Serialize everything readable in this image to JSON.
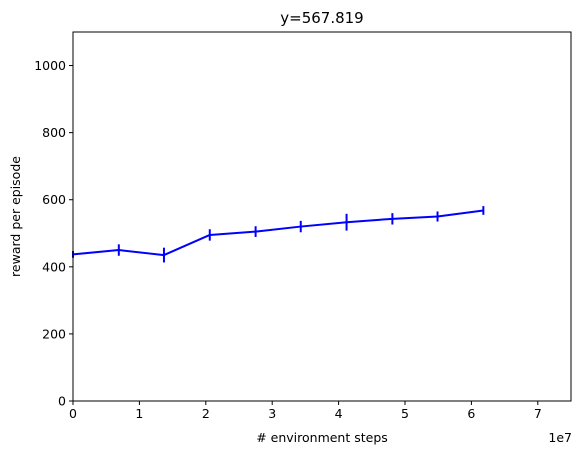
{
  "chart_data": {
    "type": "line",
    "title": "y=567.819",
    "xlabel": "# environment steps",
    "ylabel": "reward per episode",
    "x_offset_label": "1e7",
    "xlim": [
      0,
      7.5
    ],
    "ylim": [
      0,
      1100
    ],
    "x_ticks": [
      0,
      1,
      2,
      3,
      4,
      5,
      6,
      7
    ],
    "x_tick_labels": [
      "0",
      "1",
      "2",
      "3",
      "4",
      "5",
      "6",
      "7"
    ],
    "y_ticks": [
      0,
      200,
      400,
      600,
      800,
      1000
    ],
    "y_tick_labels": [
      "0",
      "200",
      "400",
      "600",
      "800",
      "1000"
    ],
    "grid": false,
    "series": [
      {
        "color": "#0000ff",
        "x": [
          0.0,
          0.69,
          1.37,
          2.06,
          2.75,
          3.43,
          4.12,
          4.81,
          5.49,
          6.18
        ],
        "y": [
          437,
          450,
          435,
          495,
          505,
          520,
          533,
          543,
          550,
          568
        ],
        "yerr": [
          10,
          17,
          22,
          17,
          16,
          17,
          25,
          17,
          15,
          13
        ]
      }
    ]
  }
}
